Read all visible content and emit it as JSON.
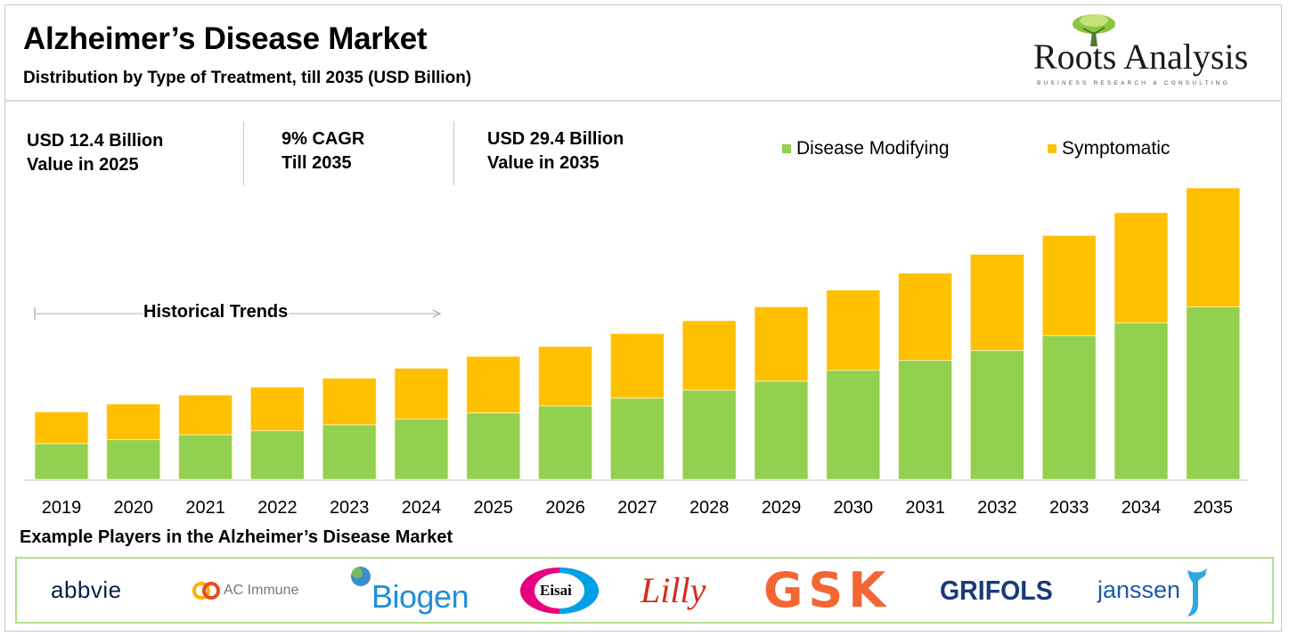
{
  "header": {
    "title": "Alzheimer’s Disease Market",
    "subtitle": "Distribution by Type of Treatment, till 2035 (USD Billion)"
  },
  "brand": {
    "name": "Roots Analysis",
    "tagline": "BUSINESS RESEARCH & CONSULTING",
    "icon": "tree-icon"
  },
  "stats": [
    {
      "line1": "USD 12.4 Billion",
      "line2": "Value in 2025"
    },
    {
      "line1": "9% CAGR",
      "line2": "Till 2035"
    },
    {
      "line1": "USD 29.4 Billion",
      "line2": "Value in 2035"
    }
  ],
  "annotation": {
    "label": "Historical Trends",
    "icon": "arrow-right-icon"
  },
  "colors": {
    "disease_modifying": "#92d050",
    "symptomatic": "#ffc000",
    "axis": "#d9d9d9",
    "players_border": "#b7dd8e"
  },
  "chart_data": {
    "type": "bar",
    "stacked": true,
    "title": "Alzheimer’s Disease Market",
    "subtitle": "Distribution by Type of Treatment, till 2035 (USD Billion)",
    "xlabel": "",
    "ylabel": "",
    "ylim": [
      0,
      30
    ],
    "grid": false,
    "legend_position": "top-right",
    "categories": [
      "2019",
      "2020",
      "2021",
      "2022",
      "2023",
      "2024",
      "2025",
      "2026",
      "2027",
      "2028",
      "2029",
      "2030",
      "2031",
      "2032",
      "2033",
      "2034",
      "2035"
    ],
    "series": [
      {
        "name": "Disease Modifying",
        "color": "#92d050",
        "values": [
          3.6,
          4.0,
          4.5,
          4.9,
          5.5,
          6.1,
          6.7,
          7.4,
          8.2,
          9.0,
          9.9,
          11.0,
          12.0,
          13.0,
          14.5,
          15.8,
          17.4
        ]
      },
      {
        "name": "Symptomatic",
        "color": "#ffc000",
        "values": [
          3.2,
          3.6,
          4.0,
          4.4,
          4.7,
          5.1,
          5.7,
          6.0,
          6.5,
          7.0,
          7.5,
          8.1,
          8.8,
          9.7,
          10.1,
          11.1,
          12.0
        ]
      }
    ],
    "totals": [
      6.8,
      7.6,
      8.5,
      9.3,
      10.2,
      11.2,
      12.4,
      13.4,
      14.7,
      16.0,
      17.4,
      19.1,
      20.8,
      22.7,
      24.6,
      26.9,
      29.4
    ],
    "annotations": [
      "Historical Trends (2019–2024)"
    ]
  },
  "players": {
    "title": "Example Players in the Alzheimer’s Disease Market",
    "logos": [
      {
        "name": "abbvie",
        "color": "#071d49"
      },
      {
        "name": "AC Immune",
        "color": "#777777"
      },
      {
        "name": "Biogen",
        "color": "#1f8fd6"
      },
      {
        "name": "Eisai",
        "color": "#000000"
      },
      {
        "name": "Lilly",
        "color": "#d52b1e"
      },
      {
        "name": "GSK",
        "color": "#f36633"
      },
      {
        "name": "GRIFOLS",
        "color": "#173a7a"
      },
      {
        "name": "janssen",
        "color": "#1e5aa8"
      }
    ]
  }
}
